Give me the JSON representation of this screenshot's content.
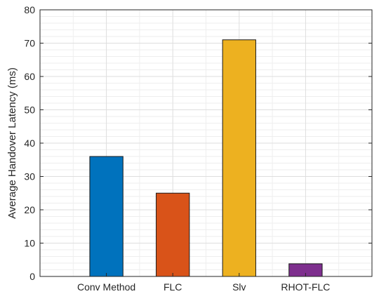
{
  "chart_data": {
    "type": "bar",
    "title": "",
    "xlabel": "",
    "ylabel": "Average Handover Latency (ms)",
    "categories": [
      "Conv Method",
      "FLC",
      "Slv",
      "RHOT-FLC"
    ],
    "values": [
      36,
      25,
      71,
      3.8
    ],
    "colors": [
      "#0072BD",
      "#D95319",
      "#EDB120",
      "#7E2F8E"
    ],
    "ylim": [
      0,
      80
    ],
    "yticks": [
      0,
      10,
      20,
      30,
      40,
      50,
      60,
      70,
      80
    ],
    "grid": true,
    "minor_grid": true,
    "legend": "none"
  }
}
